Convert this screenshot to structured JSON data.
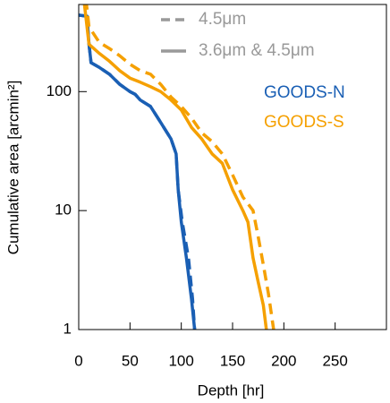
{
  "chart_data": {
    "type": "line",
    "xlabel": "Depth [hr]",
    "ylabel": "Cumulative area [arcmin²]",
    "xlim": [
      0,
      300
    ],
    "xticks": [
      0,
      50,
      100,
      150,
      200,
      250
    ],
    "ylim": [
      1,
      540
    ],
    "yticks": [
      1,
      10,
      100
    ],
    "ylog": true,
    "line_styles": {
      "dashed": "4.5μm",
      "solid": "3.6μm & 4.5μm",
      "color": "#999999"
    },
    "series": [
      {
        "name": "GOODS-N",
        "color": "#1a5fb4",
        "style": "dashed",
        "x": [
          0,
          8,
          10,
          12,
          20,
          30,
          40,
          50,
          55,
          60,
          70,
          80,
          90,
          95,
          97,
          101,
          107,
          111,
          113
        ],
        "values": [
          440,
          430,
          250,
          175,
          160,
          140,
          115,
          100,
          95,
          85,
          75,
          55,
          40,
          30,
          15,
          8,
          4,
          1.8,
          1
        ]
      },
      {
        "name": "GOODS-N",
        "color": "#1a5fb4",
        "style": "solid",
        "x": [
          0,
          8,
          10,
          12,
          20,
          30,
          40,
          50,
          55,
          60,
          70,
          80,
          90,
          95,
          97,
          100,
          105,
          110,
          113
        ],
        "values": [
          440,
          430,
          250,
          175,
          160,
          140,
          115,
          100,
          95,
          85,
          75,
          55,
          40,
          30,
          15,
          8,
          4,
          1.8,
          1
        ]
      },
      {
        "name": "GOODS-S",
        "color": "#f5a000",
        "style": "dashed",
        "x": [
          7,
          10,
          20,
          30,
          40,
          50,
          60,
          70,
          80,
          90,
          100,
          110,
          120,
          130,
          140,
          150,
          160,
          170,
          175,
          180,
          185,
          190
        ],
        "values": [
          600,
          350,
          260,
          230,
          200,
          170,
          150,
          140,
          115,
          90,
          75,
          60,
          45,
          38,
          30,
          20,
          13,
          10,
          6,
          3.5,
          2,
          1
        ]
      },
      {
        "name": "GOODS-S",
        "color": "#f5a000",
        "style": "solid",
        "x": [
          5,
          10,
          20,
          30,
          40,
          50,
          60,
          70,
          80,
          90,
          100,
          110,
          120,
          130,
          140,
          150,
          160,
          165,
          170,
          175,
          180,
          183
        ],
        "values": [
          600,
          250,
          210,
          180,
          150,
          130,
          120,
          110,
          100,
          85,
          70,
          50,
          40,
          30,
          25,
          15,
          10,
          8,
          4,
          2.5,
          1.6,
          1
        ]
      }
    ]
  }
}
